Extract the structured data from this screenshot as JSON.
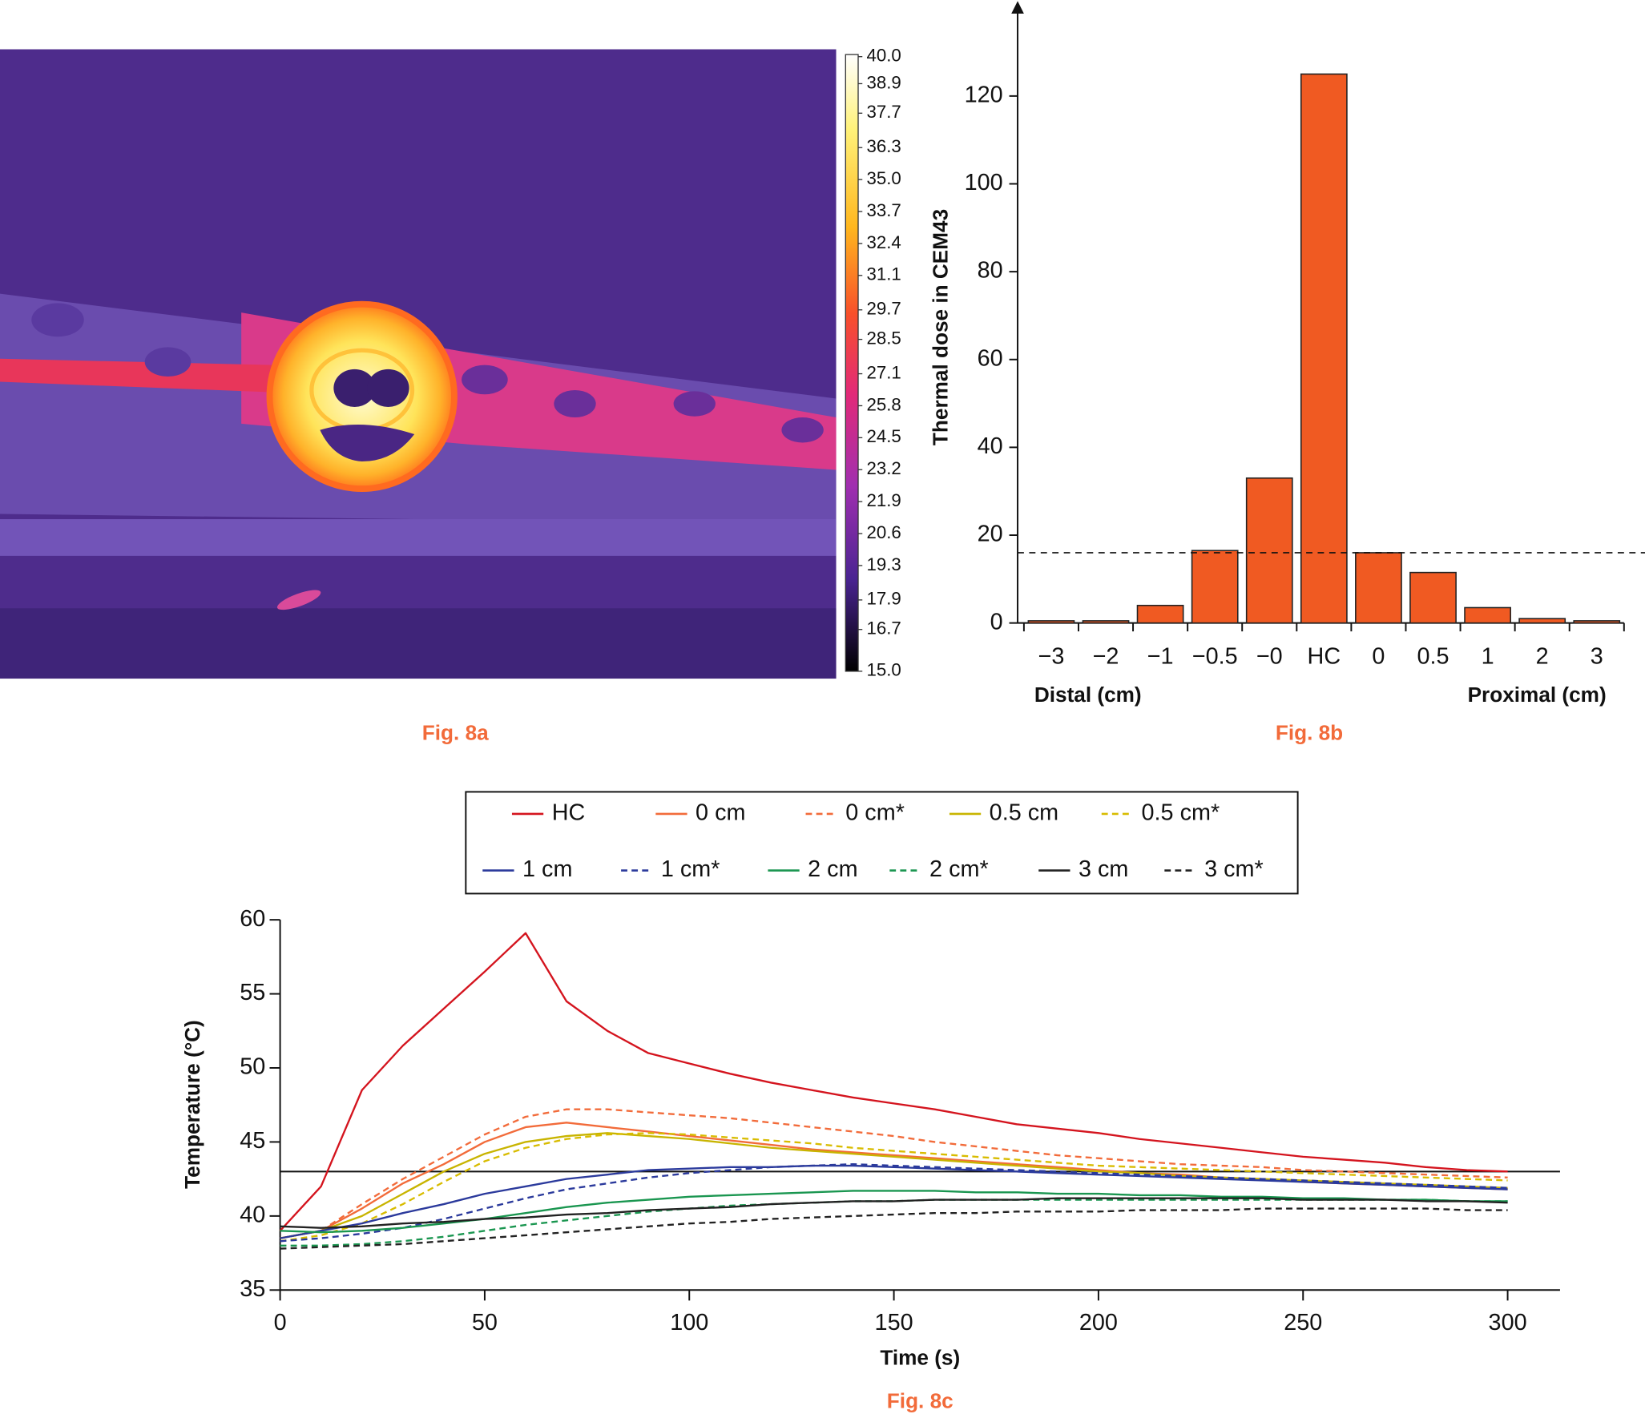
{
  "chart_data": [
    {
      "type": "image",
      "caption": "Fig. 8a",
      "clim": [
        15,
        40
      ],
      "cticks": [
        {
          "value": 40,
          "label": "40.0"
        },
        38.9,
        37.7,
        36.3,
        {
          "value": 35,
          "label": "35.0"
        },
        33.7,
        32.4,
        31.1,
        29.7,
        28.5,
        27.1,
        25.8,
        24.5,
        23.2,
        21.9,
        20.6,
        19.3,
        17.9,
        16.7,
        {
          "value": 15,
          "label": "15.0"
        }
      ]
    },
    {
      "type": "bar",
      "caption": "Fig. 8b",
      "ylabel": "Thermal dose in CEM43",
      "xnote_left": "Distal (cm)",
      "xnote_right": "Proximal (cm)",
      "categories": [
        "−3",
        "−2",
        "−1",
        "−0.5",
        "−0",
        "HC",
        "0",
        "0.5",
        "1",
        "2",
        "3"
      ],
      "values": [
        0.5,
        0.5,
        4,
        16.5,
        33,
        125,
        16,
        11.5,
        3.5,
        1,
        0.5
      ],
      "color": "#f05a22",
      "hline": 16,
      "ylim": [
        0,
        139
      ],
      "yticks": [
        0,
        20,
        40,
        60,
        80,
        100,
        120
      ]
    },
    {
      "type": "line",
      "caption": "Fig. 8c",
      "xlabel": "Time (s)",
      "ylabel": "Temperature (°C)",
      "legend": "top",
      "hline": 43,
      "xlim": [
        0,
        312.8
      ],
      "xticks": [
        0,
        50,
        100,
        150,
        200,
        250,
        300
      ],
      "ylim": [
        35,
        60
      ],
      "yticks": [
        35,
        40,
        45,
        50,
        55,
        60
      ],
      "x": [
        0,
        10,
        20,
        30,
        40,
        50,
        60,
        70,
        80,
        90,
        100,
        110,
        120,
        130,
        140,
        150,
        160,
        170,
        180,
        190,
        200,
        210,
        220,
        230,
        240,
        250,
        260,
        270,
        280,
        290,
        300
      ],
      "series": [
        {
          "name": "HC",
          "color": "#d4141e",
          "dashed": false,
          "values": [
            39,
            42,
            48.5,
            51.5,
            54,
            56.5,
            59.1,
            54.5,
            52.5,
            51,
            50.3,
            49.6,
            49,
            48.5,
            48,
            47.6,
            47.2,
            46.7,
            46.2,
            45.9,
            45.6,
            45.2,
            44.9,
            44.6,
            44.3,
            44,
            43.8,
            43.6,
            43.3,
            43.1,
            43
          ]
        },
        {
          "name": "0 cm",
          "color": "#f26b3a",
          "dashed": false,
          "values": [
            38.5,
            39,
            40.5,
            42.2,
            43.5,
            45,
            46,
            46.3,
            46,
            45.7,
            45.4,
            45.1,
            44.8,
            44.5,
            44.3,
            44.1,
            43.9,
            43.7,
            43.5,
            43.3,
            43.1,
            42.9,
            42.8,
            42.6,
            42.5,
            42.3,
            42.2,
            42.1,
            42,
            41.9,
            41.8
          ]
        },
        {
          "name": "0 cm*",
          "color": "#f26b3a",
          "dashed": true,
          "values": [
            38.5,
            39,
            40.8,
            42.5,
            44,
            45.5,
            46.7,
            47.2,
            47.2,
            47,
            46.8,
            46.6,
            46.3,
            46,
            45.7,
            45.4,
            45,
            44.7,
            44.4,
            44.1,
            43.9,
            43.7,
            43.5,
            43.4,
            43.3,
            43.1,
            43,
            42.9,
            42.8,
            42.7,
            42.6
          ]
        },
        {
          "name": "0.5 cm",
          "color": "#c8b400",
          "dashed": false,
          "values": [
            38.5,
            39,
            40,
            41.5,
            43,
            44.2,
            45,
            45.4,
            45.6,
            45.4,
            45.2,
            44.9,
            44.6,
            44.4,
            44.2,
            44,
            43.8,
            43.6,
            43.4,
            43.2,
            43,
            42.9,
            42.7,
            42.6,
            42.5,
            42.4,
            42.3,
            42.2,
            42.1,
            42,
            41.9
          ]
        },
        {
          "name": "0.5 cm*",
          "color": "#d8bc00",
          "dashed": true,
          "values": [
            38.3,
            38.7,
            39.5,
            40.8,
            42.3,
            43.7,
            44.6,
            45.2,
            45.5,
            45.6,
            45.5,
            45.3,
            45.1,
            44.9,
            44.6,
            44.4,
            44.2,
            44,
            43.8,
            43.6,
            43.4,
            43.3,
            43.2,
            43.1,
            43,
            42.9,
            42.8,
            42.7,
            42.6,
            42.5,
            42.4
          ]
        },
        {
          "name": "1 cm",
          "color": "#2b3a9c",
          "dashed": false,
          "values": [
            38.5,
            39,
            39.5,
            40.2,
            40.8,
            41.5,
            42,
            42.5,
            42.8,
            43.1,
            43.2,
            43.3,
            43.3,
            43.4,
            43.4,
            43.3,
            43.2,
            43.1,
            43,
            42.9,
            42.8,
            42.7,
            42.6,
            42.5,
            42.4,
            42.3,
            42.2,
            42.1,
            42,
            41.9,
            41.8
          ]
        },
        {
          "name": "1 cm*",
          "color": "#2b3a9c",
          "dashed": true,
          "values": [
            38.3,
            38.5,
            38.8,
            39.2,
            39.8,
            40.5,
            41.2,
            41.8,
            42.2,
            42.6,
            42.9,
            43.1,
            43.3,
            43.4,
            43.5,
            43.4,
            43.3,
            43.2,
            43.1,
            43,
            42.9,
            42.8,
            42.7,
            42.6,
            42.5,
            42.4,
            42.3,
            42.2,
            42.1,
            42,
            41.9
          ]
        },
        {
          "name": "2 cm",
          "color": "#1a9650",
          "dashed": false,
          "values": [
            39,
            38.9,
            39,
            39.2,
            39.5,
            39.8,
            40.2,
            40.6,
            40.9,
            41.1,
            41.3,
            41.4,
            41.5,
            41.6,
            41.7,
            41.7,
            41.7,
            41.6,
            41.6,
            41.5,
            41.5,
            41.4,
            41.4,
            41.3,
            41.3,
            41.2,
            41.2,
            41.1,
            41.1,
            41,
            41
          ]
        },
        {
          "name": "2 cm*",
          "color": "#1a9650",
          "dashed": true,
          "values": [
            38,
            38,
            38.1,
            38.3,
            38.6,
            39,
            39.4,
            39.7,
            40,
            40.3,
            40.5,
            40.7,
            40.8,
            40.9,
            41,
            41,
            41.1,
            41.1,
            41.1,
            41.1,
            41.1,
            41.1,
            41.1,
            41.1,
            41.1,
            41.1,
            41.1,
            41.1,
            41.1,
            41,
            41
          ]
        },
        {
          "name": "3 cm",
          "color": "#222222",
          "dashed": false,
          "values": [
            39.3,
            39.2,
            39.3,
            39.5,
            39.6,
            39.8,
            39.9,
            40.1,
            40.2,
            40.4,
            40.5,
            40.6,
            40.8,
            40.9,
            41,
            41,
            41.1,
            41.1,
            41.1,
            41.2,
            41.2,
            41.2,
            41.2,
            41.2,
            41.2,
            41.1,
            41.1,
            41.1,
            41,
            41,
            40.9
          ]
        },
        {
          "name": "3 cm*",
          "color": "#222222",
          "dashed": true,
          "values": [
            37.8,
            37.9,
            38,
            38.1,
            38.3,
            38.5,
            38.7,
            38.9,
            39.1,
            39.3,
            39.5,
            39.6,
            39.8,
            39.9,
            40,
            40.1,
            40.2,
            40.2,
            40.3,
            40.3,
            40.3,
            40.4,
            40.4,
            40.4,
            40.5,
            40.5,
            40.5,
            40.5,
            40.5,
            40.4,
            40.4
          ]
        }
      ]
    }
  ]
}
